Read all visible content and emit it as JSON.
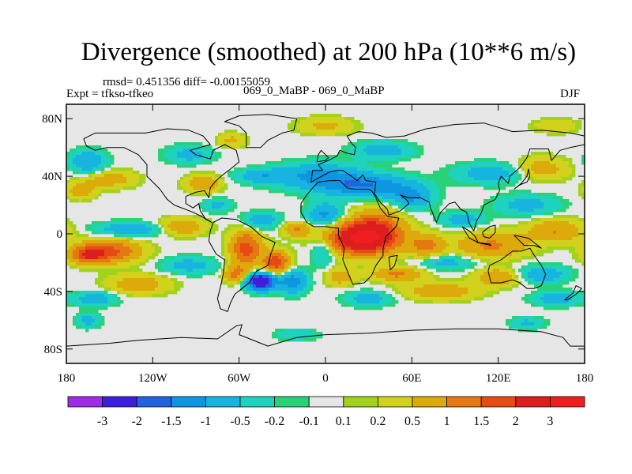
{
  "chart_data": {
    "type": "heatmap",
    "title": "Divergence (smoothed) at 200 hPa (10**6 m/s)",
    "stats_text": "rmsd= 0.451356 diff= -0.00155059",
    "left_label": "Expt = tfkso-tfkeo",
    "center_label": "069_0_MaBP - 069_0_MaBP",
    "right_label": "DJF",
    "x_range": [
      -180,
      180
    ],
    "y_range": [
      -90,
      90
    ],
    "x_ticks": [
      {
        "v": -180,
        "label": "180"
      },
      {
        "v": -120,
        "label": "120W"
      },
      {
        "v": -60,
        "label": "60W"
      },
      {
        "v": 0,
        "label": "0"
      },
      {
        "v": 60,
        "label": "60E"
      },
      {
        "v": 120,
        "label": "120E"
      },
      {
        "v": 180,
        "label": "180"
      }
    ],
    "y_ticks": [
      {
        "v": 80,
        "label": "80N"
      },
      {
        "v": 40,
        "label": "40N"
      },
      {
        "v": 0,
        "label": "0"
      },
      {
        "v": -40,
        "label": "40S"
      },
      {
        "v": -80,
        "label": "80S"
      }
    ],
    "levels": [
      "-3",
      "-2",
      "-1.5",
      "-1",
      "-0.5",
      "-0.2",
      "-0.1",
      "0.1",
      "0.2",
      "0.5",
      "1",
      "1.5",
      "2",
      "3"
    ],
    "colors": [
      "#a02ce6",
      "#3c1edc",
      "#2363e0",
      "#0f96e0",
      "#17b4e0",
      "#1ed2be",
      "#28d278",
      "#e6e6e6",
      "#a0d21e",
      "#d2d21e",
      "#dcaa0a",
      "#e67814",
      "#e64b14",
      "#dc1e1e",
      "#f01e1e"
    ],
    "features": [
      {
        "lon": 26,
        "lat": -3,
        "rx": 24,
        "ry": 11,
        "amp": 3.2
      },
      {
        "lon": 36,
        "lat": 8,
        "rx": 18,
        "ry": 12,
        "amp": 0.9
      },
      {
        "lon": -55,
        "lat": -10,
        "rx": 11,
        "ry": 13,
        "amp": 1.7
      },
      {
        "lon": -34,
        "lat": -20,
        "rx": 9,
        "ry": 8,
        "amp": 1.9
      },
      {
        "lon": -45,
        "lat": -33,
        "rx": 10,
        "ry": 6,
        "amp": -3.0
      },
      {
        "lon": -62,
        "lat": -28,
        "rx": 8,
        "ry": 6,
        "amp": 1.2
      },
      {
        "lon": -23,
        "lat": -33,
        "rx": 10,
        "ry": 8,
        "amp": -1.3
      },
      {
        "lon": -2,
        "lat": -12,
        "rx": 8,
        "ry": 10,
        "amp": -0.8
      },
      {
        "lon": 0,
        "lat": 13,
        "rx": 12,
        "ry": 8,
        "amp": -1.2
      },
      {
        "lon": -45,
        "lat": 9,
        "rx": 13,
        "ry": 6,
        "amp": -0.9
      },
      {
        "lon": -20,
        "lat": 3,
        "rx": 10,
        "ry": 5,
        "amp": 1.0
      },
      {
        "lon": -5,
        "lat": 40,
        "rx": 30,
        "ry": 9,
        "amp": -1.1
      },
      {
        "lon": 30,
        "lat": 33,
        "rx": 30,
        "ry": 8,
        "amp": -1.4
      },
      {
        "lon": 60,
        "lat": 25,
        "rx": 14,
        "ry": 8,
        "amp": -1.0
      },
      {
        "lon": -45,
        "lat": 40,
        "rx": 17,
        "ry": 5,
        "amp": -0.8
      },
      {
        "lon": 70,
        "lat": -8,
        "rx": 12,
        "ry": 8,
        "amp": 1.1
      },
      {
        "lon": 115,
        "lat": -8,
        "rx": 25,
        "ry": 9,
        "amp": 1.1
      },
      {
        "lon": 160,
        "lat": 2,
        "rx": 20,
        "ry": 8,
        "amp": 1.0
      },
      {
        "lon": 140,
        "lat": 20,
        "rx": 22,
        "ry": 7,
        "amp": -0.7
      },
      {
        "lon": 95,
        "lat": 10,
        "rx": 15,
        "ry": 5,
        "amp": -0.8
      },
      {
        "lon": -150,
        "lat": -12,
        "rx": 22,
        "ry": 8,
        "amp": 1.6
      },
      {
        "lon": -165,
        "lat": -15,
        "rx": 12,
        "ry": 6,
        "amp": 1.4
      },
      {
        "lon": -135,
        "lat": 3,
        "rx": 25,
        "ry": 5,
        "amp": -0.9
      },
      {
        "lon": -100,
        "lat": 5,
        "rx": 16,
        "ry": 6,
        "amp": 1.0
      },
      {
        "lon": -95,
        "lat": -22,
        "rx": 20,
        "ry": 6,
        "amp": -0.7
      },
      {
        "lon": -130,
        "lat": -35,
        "rx": 22,
        "ry": 7,
        "amp": 0.8
      },
      {
        "lon": -165,
        "lat": 50,
        "rx": 12,
        "ry": 8,
        "amp": -1.0
      },
      {
        "lon": -150,
        "lat": 38,
        "rx": 18,
        "ry": 6,
        "amp": 0.8
      },
      {
        "lon": -170,
        "lat": 30,
        "rx": 10,
        "ry": 6,
        "amp": 0.8
      },
      {
        "lon": -95,
        "lat": 55,
        "rx": 16,
        "ry": 6,
        "amp": -0.7
      },
      {
        "lon": -85,
        "lat": 35,
        "rx": 12,
        "ry": 6,
        "amp": 1.0
      },
      {
        "lon": -65,
        "lat": 65,
        "rx": 10,
        "ry": 5,
        "amp": 0.6
      },
      {
        "lon": -75,
        "lat": 20,
        "rx": 10,
        "ry": 5,
        "amp": -0.6
      },
      {
        "lon": 40,
        "lat": 58,
        "rx": 20,
        "ry": 6,
        "amp": -0.8
      },
      {
        "lon": 115,
        "lat": 42,
        "rx": 25,
        "ry": 7,
        "amp": -0.8
      },
      {
        "lon": 150,
        "lat": 45,
        "rx": 18,
        "ry": 8,
        "amp": 0.8
      },
      {
        "lon": 0,
        "lat": 75,
        "rx": 20,
        "ry": 6,
        "amp": 0.6
      },
      {
        "lon": 50,
        "lat": -28,
        "rx": 18,
        "ry": 5,
        "amp": 1.1
      },
      {
        "lon": 85,
        "lat": -20,
        "rx": 20,
        "ry": 5,
        "amp": -0.7
      },
      {
        "lon": 80,
        "lat": -40,
        "rx": 25,
        "ry": 6,
        "amp": 0.9
      },
      {
        "lon": 120,
        "lat": -30,
        "rx": 16,
        "ry": 6,
        "amp": 1.0
      },
      {
        "lon": 150,
        "lat": -28,
        "rx": 18,
        "ry": 6,
        "amp": -0.9
      },
      {
        "lon": 160,
        "lat": -45,
        "rx": 16,
        "ry": 5,
        "amp": -0.8
      },
      {
        "lon": -160,
        "lat": -45,
        "rx": 15,
        "ry": 5,
        "amp": -0.8
      },
      {
        "lon": 30,
        "lat": -45,
        "rx": 16,
        "ry": 5,
        "amp": -0.8
      },
      {
        "lon": 10,
        "lat": -30,
        "rx": 10,
        "ry": 6,
        "amp": 0.8
      },
      {
        "lon": -165,
        "lat": -60,
        "rx": 8,
        "ry": 5,
        "amp": -0.7
      },
      {
        "lon": 140,
        "lat": -62,
        "rx": 12,
        "ry": 4,
        "amp": -0.6
      },
      {
        "lon": -20,
        "lat": -70,
        "rx": 14,
        "ry": 4,
        "amp": -0.5
      },
      {
        "lon": 160,
        "lat": 75,
        "rx": 15,
        "ry": 5,
        "amp": 0.5
      }
    ]
  }
}
